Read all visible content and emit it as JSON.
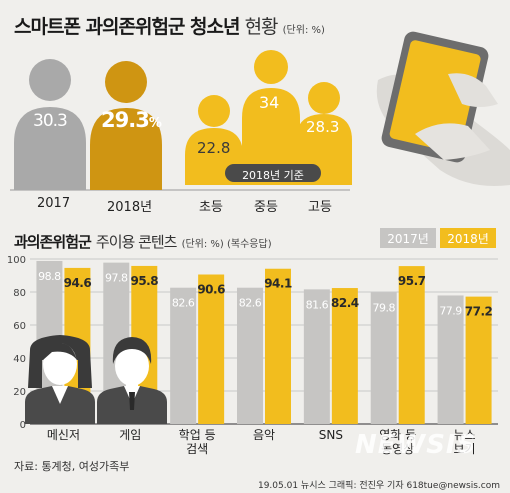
{
  "header": {
    "title_bold": "스마트폰 과의존위험군 청소년",
    "title_light": "현황",
    "unit": "(단위: %)"
  },
  "top_section": {
    "overall": [
      {
        "year": "2017",
        "value": "30.3",
        "suffix": ""
      },
      {
        "year": "2018년",
        "value": "29.3",
        "suffix": "%"
      }
    ],
    "by_school": [
      {
        "label": "초등",
        "value": "22.8"
      },
      {
        "label": "중등",
        "value": "34"
      },
      {
        "label": "고등",
        "value": "28.3"
      }
    ],
    "badge": "2018년 기준"
  },
  "bottom_section": {
    "title_bold": "과의존위험군",
    "title_light": "주이용 콘텐츠",
    "unit": "(단위: %) (복수응답)",
    "legend": [
      {
        "label": "2017년",
        "color": "#c6c5c3"
      },
      {
        "label": "2018년",
        "color": "#f2bd1e"
      }
    ]
  },
  "chart_data": {
    "type": "bar",
    "title": "과의존위험군 주이용 콘텐츠",
    "unit": "(단위: %) (복수응답)",
    "categories": [
      [
        "메신저"
      ],
      [
        "게임"
      ],
      [
        "학업 등",
        "검색"
      ],
      [
        "음악"
      ],
      [
        "SNS"
      ],
      [
        "영화 등",
        "동영상"
      ],
      [
        "뉴스",
        "보기"
      ]
    ],
    "series": [
      {
        "name": "2017년",
        "color": "#c6c5c3",
        "values": [
          98.8,
          97.8,
          82.6,
          82.6,
          81.6,
          79.8,
          77.9
        ]
      },
      {
        "name": "2018년",
        "color": "#f2bd1e",
        "values": [
          94.6,
          95.8,
          90.6,
          94.1,
          82.4,
          95.7,
          77.2
        ]
      }
    ],
    "yticks": [
      0,
      20,
      40,
      60,
      80,
      100
    ],
    "ylim": [
      0,
      100
    ],
    "grid": true
  },
  "footer": {
    "source": "자료: 통계청, 여성가족부",
    "credit": "19.05.01 뉴시스 그래픽: 전진우 기자 618tue@newsis.com",
    "watermark": "NEWSIS"
  }
}
